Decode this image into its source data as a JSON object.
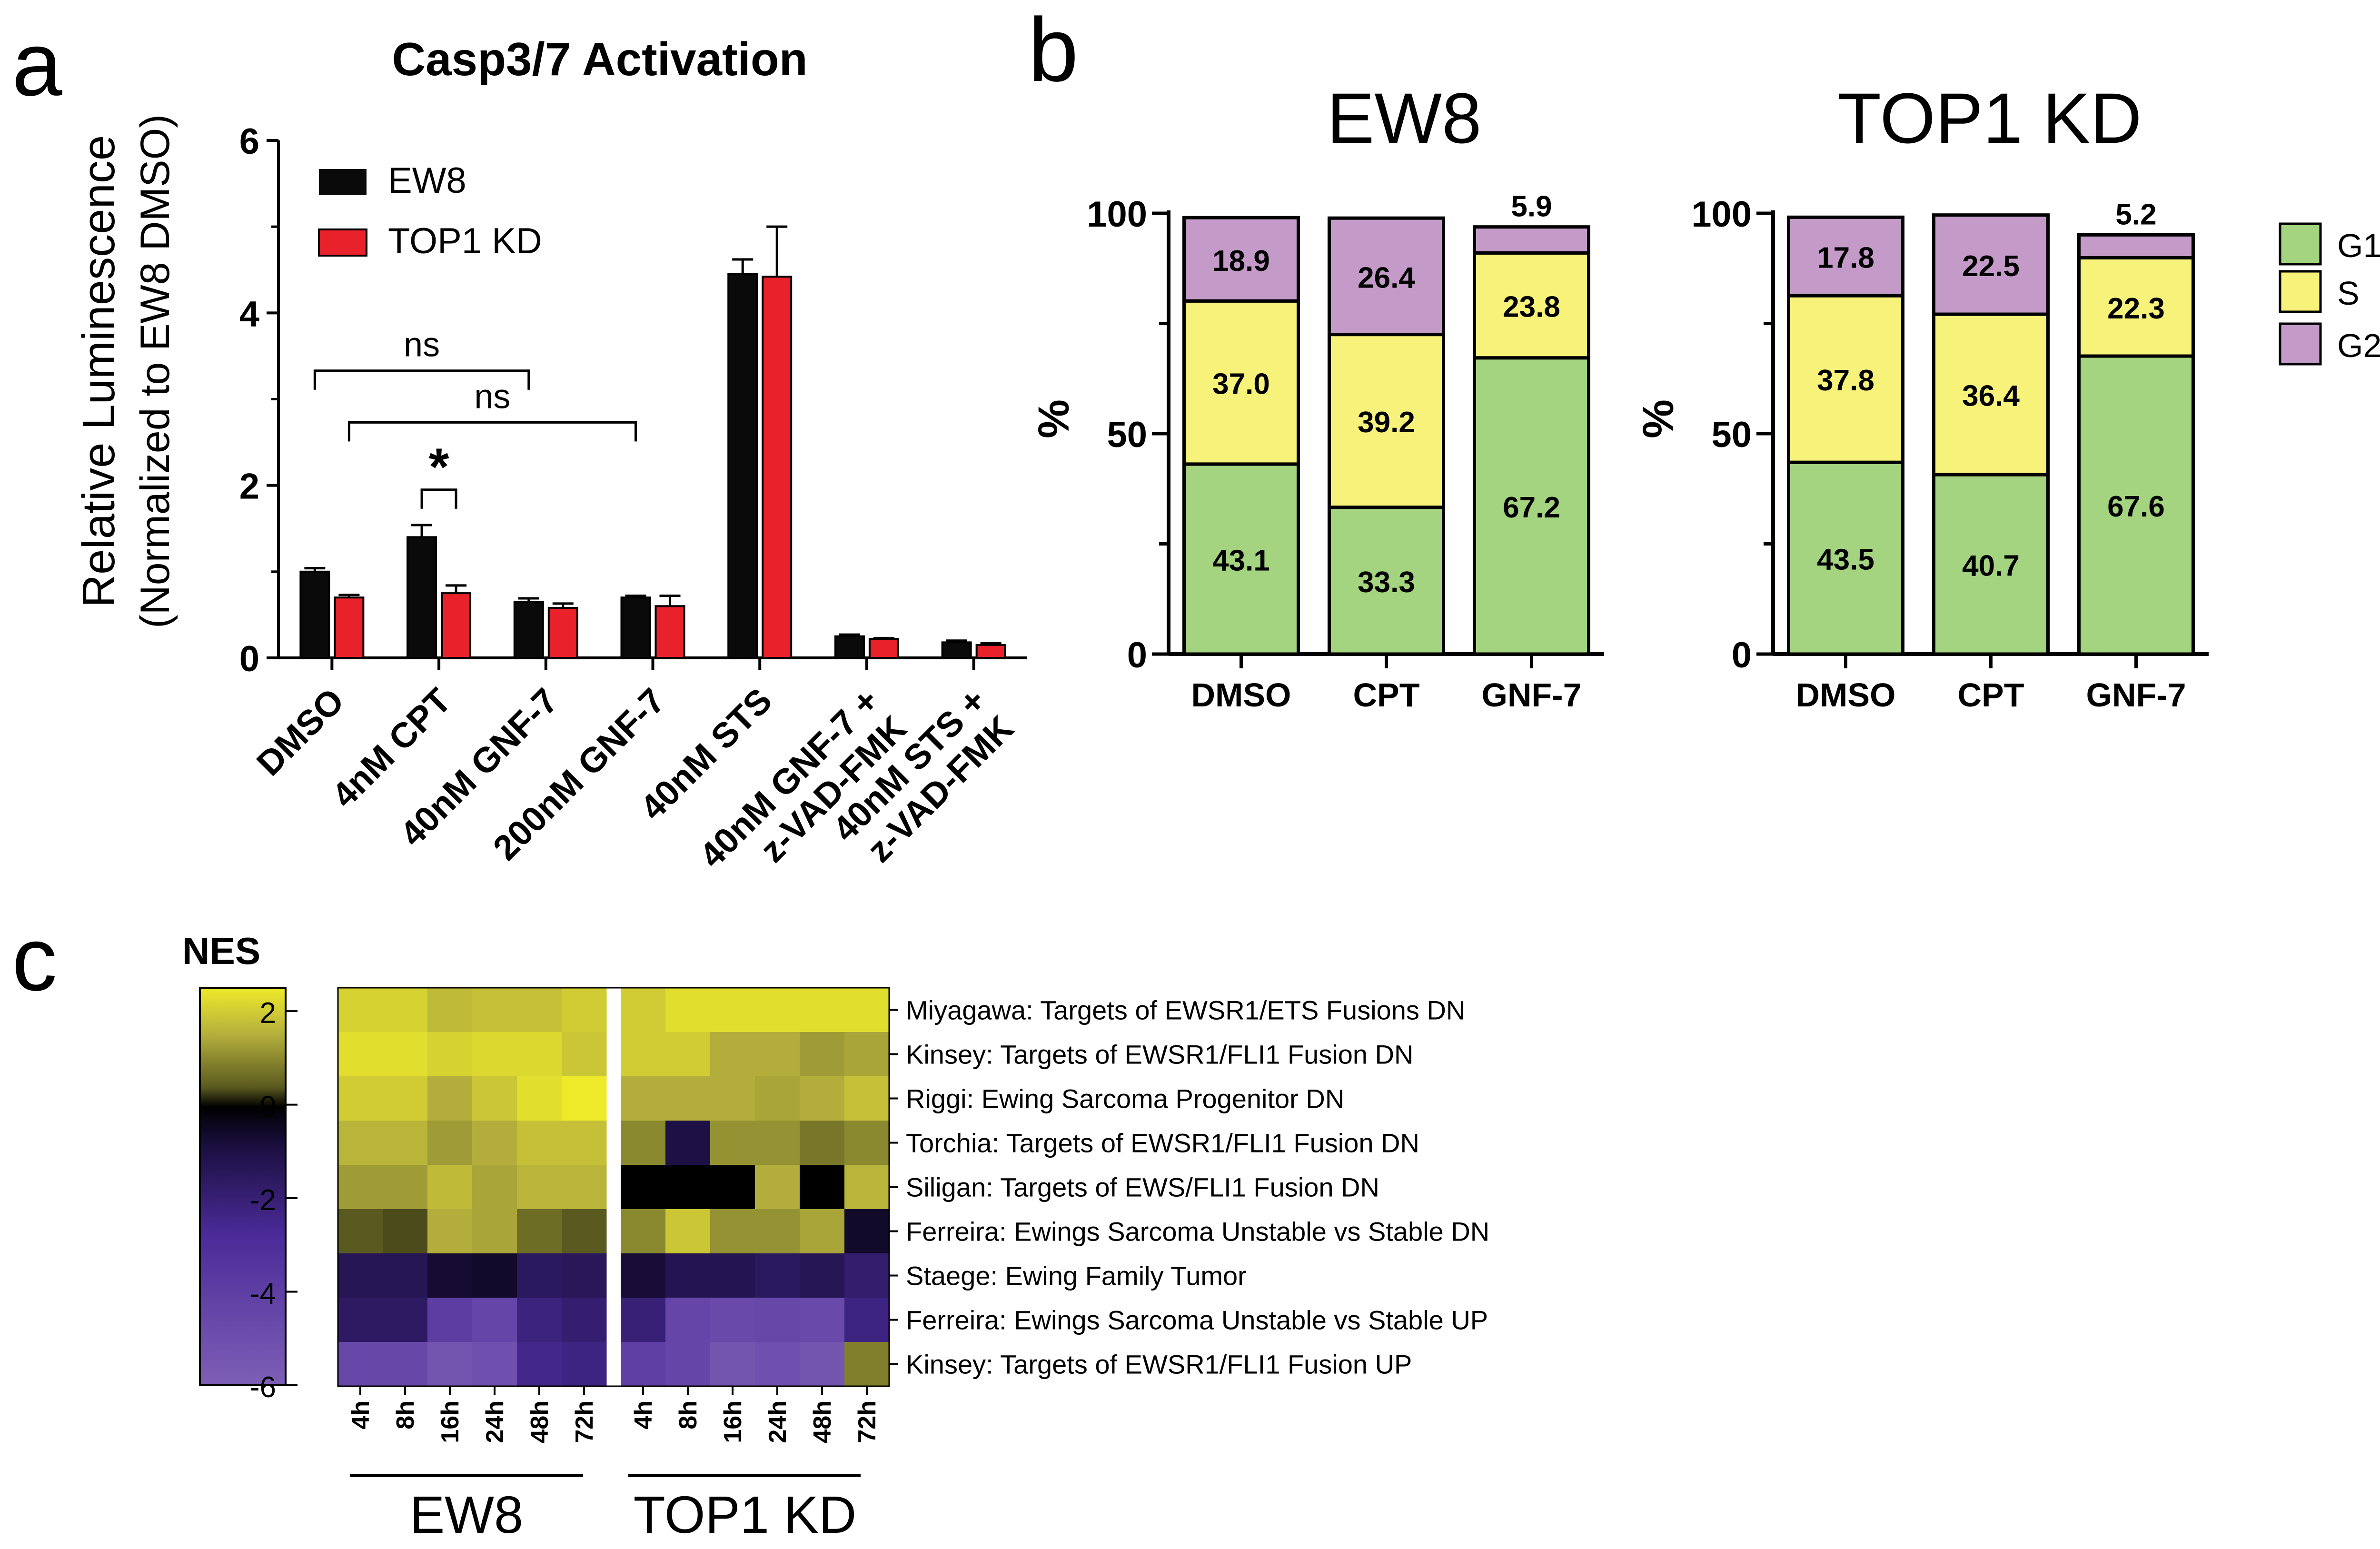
{
  "panel_labels": {
    "a": "a",
    "b": "b",
    "c": "c"
  },
  "colors": {
    "ew8": "#0a0a0a",
    "top1": "#e8212b",
    "g1": "#a4d47f",
    "s": "#f7f27a",
    "g2": "#c49bc8"
  },
  "chart_data": [
    {
      "id": "panel-a",
      "type": "bar",
      "title": "Casp3/7 Activation",
      "ylabel": "Relative Luminescence",
      "ylabel2": "(Normalized to EW8 DMSO)",
      "ylim": [
        0,
        6
      ],
      "yticks": [
        "0",
        "2",
        "4",
        "6"
      ],
      "categories": [
        "DMSO",
        "4nM CPT",
        "40nM GNF-7",
        "200nM GNF-7",
        "40nM STS",
        "40nM GNF-7 +|z-VAD-FMK",
        "40nM STS +|z-VAD-FMK"
      ],
      "series": [
        {
          "name": "EW8",
          "values": [
            1.0,
            1.4,
            0.65,
            0.7,
            4.45,
            0.25,
            0.18
          ],
          "errors": [
            0.04,
            0.14,
            0.04,
            0.02,
            0.17,
            0.02,
            0.02
          ]
        },
        {
          "name": "TOP1 KD",
          "values": [
            0.7,
            0.75,
            0.58,
            0.6,
            4.42,
            0.22,
            0.15
          ],
          "errors": [
            0.03,
            0.09,
            0.05,
            0.12,
            0.58,
            0.01,
            0.02
          ]
        }
      ],
      "annotations": [
        {
          "text": "ns",
          "from": 0,
          "to": 2,
          "y": 3.33
        },
        {
          "text": "ns",
          "from": 0.5,
          "to": 3,
          "y": 2.73
        },
        {
          "text": "*",
          "from": 1,
          "to": 1.5,
          "y": 1.95
        }
      ]
    },
    {
      "id": "panel-b-ew8",
      "type": "bar",
      "stacked": true,
      "title": "EW8",
      "ylabel": "%",
      "ylim": [
        0,
        100
      ],
      "yticks": [
        "0",
        "50",
        "100"
      ],
      "categories": [
        "DMSO",
        "CPT",
        "GNF-7"
      ],
      "series": [
        {
          "name": "G1",
          "values": [
            43.1,
            33.3,
            67.2
          ],
          "labels": [
            "43.1",
            "33.3",
            "67.2"
          ]
        },
        {
          "name": "S",
          "values": [
            37.0,
            39.2,
            23.8
          ],
          "labels": [
            "37.0",
            "39.2",
            "23.8"
          ]
        },
        {
          "name": "G2",
          "values": [
            18.9,
            26.4,
            5.9
          ],
          "labels": [
            "18.9",
            "26.4",
            "5.9"
          ]
        }
      ]
    },
    {
      "id": "panel-b-top1",
      "type": "bar",
      "stacked": true,
      "title": "TOP1 KD",
      "ylabel": "%",
      "ylim": [
        0,
        100
      ],
      "yticks": [
        "0",
        "50",
        "100"
      ],
      "categories": [
        "DMSO",
        "CPT",
        "GNF-7"
      ],
      "series": [
        {
          "name": "G1",
          "values": [
            43.5,
            40.7,
            67.6
          ],
          "labels": [
            "43.5",
            "40.7",
            "67.6"
          ]
        },
        {
          "name": "S",
          "values": [
            37.8,
            36.4,
            22.3
          ],
          "labels": [
            "37.8",
            "36.4",
            "22.3"
          ]
        },
        {
          "name": "G2",
          "values": [
            17.8,
            22.5,
            5.2
          ],
          "labels": [
            "17.8",
            "22.5",
            "5.2"
          ]
        }
      ],
      "legend": [
        "G1",
        "S",
        "G2"
      ]
    },
    {
      "id": "panel-c",
      "type": "heatmap",
      "colorbar_title": "NES",
      "colorbar_ticks": [
        "2",
        "0",
        "-2",
        "-4",
        "-6"
      ],
      "colorbar_range": [
        -6,
        2.5
      ],
      "columns": [
        "4h",
        "8h",
        "16h",
        "24h",
        "48h",
        "72h",
        "4h",
        "8h",
        "16h",
        "24h",
        "48h",
        "72h"
      ],
      "groups": [
        "EW8",
        "TOP1 KD"
      ],
      "rows": [
        "Miyagawa: Targets of EWSR1/ETS Fusions DN",
        "Kinsey: Targets of EWSR1/FLI1 Fusion DN",
        "Riggi: Ewing Sarcoma Progenitor DN",
        "Torchia: Targets of EWSR1/FLI1 Fusion DN",
        "Siligan: Targets of EWS/FLI1 Fusion DN",
        "Ferreira: Ewings Sarcoma Unstable vs Stable DN",
        "Staege: Ewing Family Tumor",
        "Ferreira: Ewings Sarcoma Unstable vs Stable UP",
        "Kinsey: Targets of EWSR1/FLI1 Fusion UP"
      ],
      "values": [
        [
          2.1,
          2.1,
          1.7,
          1.8,
          1.8,
          2.0,
          2.0,
          2.3,
          2.3,
          2.3,
          2.3,
          2.3
        ],
        [
          2.3,
          2.3,
          2.1,
          2.2,
          2.2,
          1.9,
          2.0,
          2.0,
          1.5,
          1.5,
          1.3,
          1.4
        ],
        [
          2.0,
          2.0,
          1.5,
          1.9,
          2.3,
          2.5,
          1.5,
          1.5,
          1.5,
          1.4,
          1.5,
          1.8
        ],
        [
          1.6,
          1.6,
          1.3,
          1.5,
          1.8,
          1.8,
          1.1,
          -1.6,
          1.2,
          1.2,
          0.9,
          1.1
        ],
        [
          1.3,
          1.3,
          1.7,
          1.4,
          1.6,
          1.6,
          0.0,
          0.0,
          0.0,
          1.5,
          0.0,
          1.6
        ],
        [
          0.6,
          0.5,
          1.5,
          1.4,
          0.8,
          0.6,
          1.1,
          1.9,
          1.2,
          1.2,
          1.4,
          -1.0
        ],
        [
          -2.0,
          -2.0,
          -1.2,
          -1.0,
          -2.2,
          -2.1,
          -1.3,
          -1.9,
          -1.9,
          -2.2,
          -2.0,
          -2.5
        ],
        [
          -2.3,
          -2.3,
          -4.4,
          -4.8,
          -2.9,
          -2.6,
          -2.7,
          -4.8,
          -5.0,
          -4.9,
          -5.0,
          -3.0
        ],
        [
          -4.9,
          -4.9,
          -5.5,
          -5.3,
          -3.2,
          -3.0,
          -4.5,
          -4.8,
          -5.5,
          -5.3,
          -5.5,
          1.0
        ]
      ]
    }
  ]
}
